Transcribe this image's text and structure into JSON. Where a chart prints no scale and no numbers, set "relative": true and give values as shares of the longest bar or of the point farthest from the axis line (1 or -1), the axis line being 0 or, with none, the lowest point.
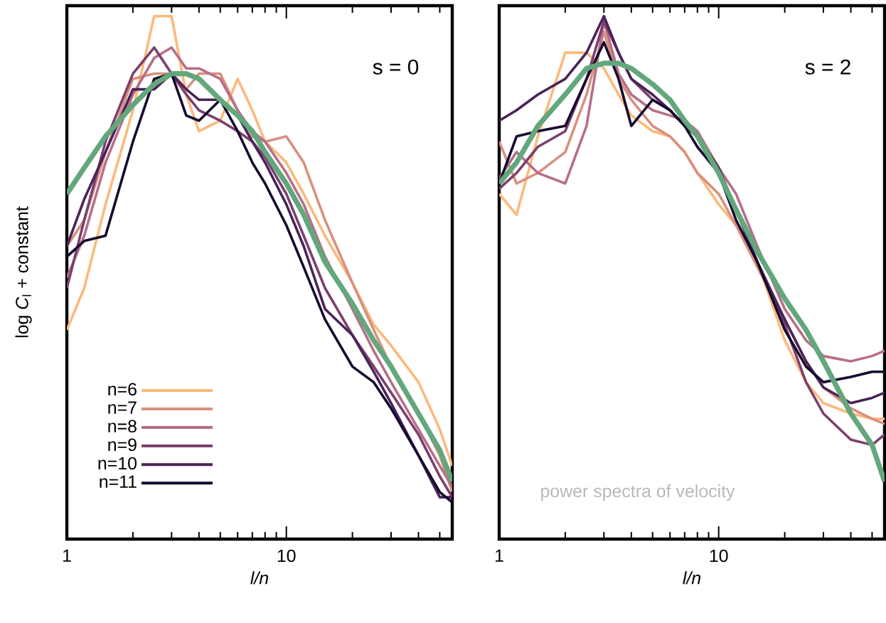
{
  "chart_data": [
    {
      "type": "line",
      "relative": true,
      "log": "x",
      "legend": "bottom left",
      "ylabel": "log *C*$_{l}$ + constant",
      "xlabel": "l/n",
      "annotations": [
        "s = 0"
      ],
      "xlim": [
        1,
        57
      ],
      "xticks": [
        1,
        {
          "value": 2,
          "label": null
        },
        {
          "value": 3,
          "label": null
        },
        {
          "value": 4,
          "label": null
        },
        {
          "value": 5,
          "label": null
        },
        {
          "value": 6,
          "label": null
        },
        {
          "value": 7,
          "label": null
        },
        {
          "value": 8,
          "label": null
        },
        {
          "value": 9,
          "label": null
        },
        10,
        {
          "value": 20,
          "label": null
        },
        {
          "value": 30,
          "label": null
        },
        {
          "value": 40,
          "label": null
        },
        {
          "value": 50,
          "label": null
        }
      ],
      "x": [
        1,
        1.2,
        1.5,
        2,
        2.5,
        3,
        3.5,
        4,
        5,
        6,
        7,
        8,
        10,
        12,
        15,
        20,
        25,
        30,
        40,
        50,
        57
      ],
      "series": [
        {
          "name": "n=6",
          "color": "#fcb97a",
          "values": [
            0.4,
            0.48,
            0.64,
            0.82,
            1.0,
            1.0,
            0.85,
            0.78,
            0.8,
            0.88,
            0.82,
            0.76,
            0.72,
            0.66,
            0.58,
            0.49,
            0.41,
            0.37,
            0.3,
            0.21,
            0.14
          ]
        },
        {
          "name": "n=7",
          "color": "#d9907d",
          "values": [
            0.56,
            0.61,
            0.74,
            0.88,
            0.89,
            0.89,
            0.86,
            0.89,
            0.89,
            0.82,
            0.77,
            0.76,
            0.77,
            0.72,
            0.61,
            0.49,
            0.4,
            0.33,
            0.24,
            0.16,
            0.09
          ]
        },
        {
          "name": "n=8",
          "color": "#b86e88",
          "values": [
            0.5,
            0.58,
            0.72,
            0.85,
            0.92,
            0.94,
            0.9,
            0.9,
            0.88,
            0.82,
            0.78,
            0.76,
            0.7,
            0.64,
            0.54,
            0.44,
            0.36,
            0.3,
            0.21,
            0.14,
            0.1
          ]
        },
        {
          "name": "n=9",
          "color": "#7b3f6e",
          "values": [
            0.48,
            0.61,
            0.76,
            0.89,
            0.94,
            0.89,
            0.85,
            0.82,
            0.8,
            0.78,
            0.76,
            0.73,
            0.66,
            0.58,
            0.48,
            0.39,
            0.33,
            0.28,
            0.2,
            0.12,
            0.08
          ]
        },
        {
          "name": "n=10",
          "color": "#4a2358",
          "values": [
            0.56,
            0.65,
            0.74,
            0.86,
            0.86,
            0.89,
            0.86,
            0.84,
            0.84,
            0.81,
            0.76,
            0.72,
            0.64,
            0.56,
            0.44,
            0.39,
            0.32,
            0.26,
            0.16,
            0.08,
            0.08
          ]
        },
        {
          "name": "n=11",
          "color": "#150a2e",
          "values": [
            0.54,
            0.57,
            0.58,
            0.76,
            0.88,
            0.89,
            0.81,
            0.8,
            0.84,
            0.78,
            0.72,
            0.68,
            0.6,
            0.52,
            0.42,
            0.33,
            0.3,
            0.25,
            0.16,
            0.09,
            0.07
          ]
        },
        {
          "color": "#63a77c",
          "values": [
            0.66,
            0.71,
            0.77,
            0.83,
            0.87,
            0.89,
            0.89,
            0.88,
            0.84,
            0.81,
            0.78,
            0.74,
            0.68,
            0.62,
            0.53,
            0.45,
            0.38,
            0.33,
            0.24,
            0.17,
            0.11
          ]
        }
      ]
    },
    {
      "type": "line",
      "relative": true,
      "log": "x",
      "xlabel": "l/n",
      "annotations": [
        "s = 2",
        "power spectra of velocity"
      ],
      "xlim": [
        1,
        57
      ],
      "xticks": [
        1,
        {
          "value": 2,
          "label": null
        },
        {
          "value": 3,
          "label": null
        },
        {
          "value": 4,
          "label": null
        },
        {
          "value": 5,
          "label": null
        },
        {
          "value": 6,
          "label": null
        },
        {
          "value": 7,
          "label": null
        },
        {
          "value": 8,
          "label": null
        },
        {
          "value": 9,
          "label": null
        },
        10,
        {
          "value": 20,
          "label": null
        },
        {
          "value": 30,
          "label": null
        },
        {
          "value": 40,
          "label": null
        },
        {
          "value": 50,
          "label": null
        }
      ],
      "x": [
        1,
        1.2,
        1.5,
        2,
        2.5,
        3,
        3.5,
        4,
        5,
        6,
        7,
        8,
        10,
        12,
        15,
        20,
        25,
        30,
        40,
        50,
        57
      ],
      "series": [
        {
          "color": "#fcb97a",
          "values": [
            0.66,
            0.62,
            0.77,
            0.93,
            0.93,
            0.9,
            0.85,
            0.81,
            0.78,
            0.77,
            0.74,
            0.7,
            0.64,
            0.6,
            0.53,
            0.38,
            0.3,
            0.26,
            0.24,
            0.23,
            0.23
          ]
        },
        {
          "color": "#d9907d",
          "values": [
            0.76,
            0.68,
            0.7,
            0.74,
            0.85,
            0.97,
            0.88,
            0.84,
            0.79,
            0.77,
            0.74,
            0.7,
            0.66,
            0.6,
            0.52,
            0.42,
            0.34,
            0.29,
            0.25,
            0.23,
            0.22
          ]
        },
        {
          "color": "#b86e88",
          "values": [
            0.69,
            0.74,
            0.7,
            0.68,
            0.79,
            0.99,
            0.89,
            0.85,
            0.82,
            0.81,
            0.8,
            0.78,
            0.71,
            0.66,
            0.56,
            0.44,
            0.38,
            0.35,
            0.34,
            0.35,
            0.36
          ]
        },
        {
          "color": "#7b3f6e",
          "values": [
            0.67,
            0.7,
            0.75,
            0.78,
            0.88,
            0.99,
            0.93,
            0.88,
            0.84,
            0.82,
            0.79,
            0.77,
            0.7,
            0.63,
            0.53,
            0.41,
            0.3,
            0.24,
            0.19,
            0.18,
            0.2
          ]
        },
        {
          "color": "#4a2358",
          "values": [
            0.8,
            0.82,
            0.85,
            0.88,
            0.93,
            1.0,
            0.93,
            0.88,
            0.85,
            0.82,
            0.79,
            0.77,
            0.71,
            0.63,
            0.53,
            0.42,
            0.34,
            0.29,
            0.26,
            0.27,
            0.28
          ]
        },
        {
          "color": "#150a2e",
          "values": [
            0.68,
            0.77,
            0.78,
            0.79,
            0.88,
            0.95,
            0.88,
            0.79,
            0.84,
            0.82,
            0.79,
            0.75,
            0.7,
            0.61,
            0.53,
            0.4,
            0.33,
            0.3,
            0.31,
            0.32,
            0.32
          ]
        },
        {
          "color": "#63a77c",
          "values": [
            0.68,
            0.72,
            0.79,
            0.85,
            0.9,
            0.91,
            0.91,
            0.9,
            0.87,
            0.84,
            0.8,
            0.77,
            0.7,
            0.63,
            0.55,
            0.46,
            0.4,
            0.34,
            0.24,
            0.18,
            0.11
          ]
        }
      ]
    }
  ]
}
